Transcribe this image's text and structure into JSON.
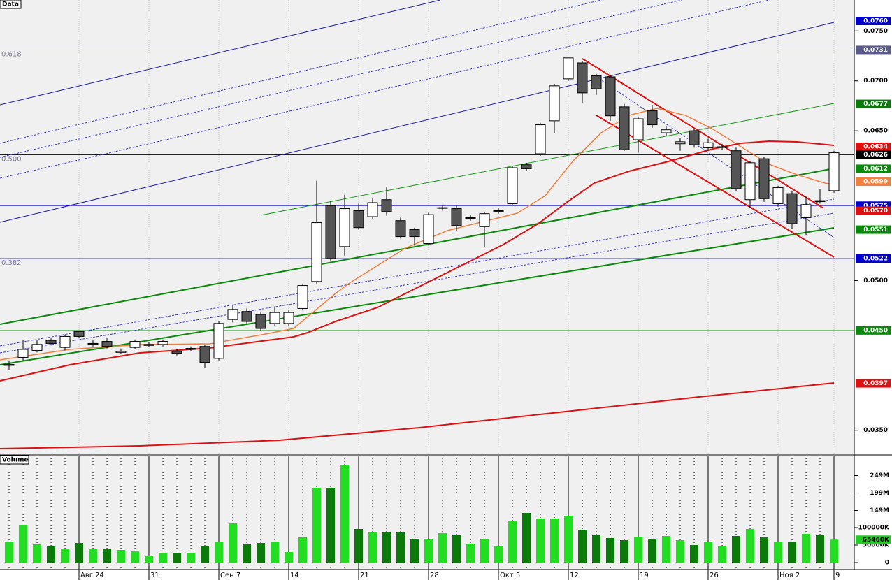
{
  "chart_data": {
    "type": "candlestick",
    "title": "Data",
    "volume_title": "Volume",
    "categories": [
      null,
      null,
      null,
      null,
      null,
      "Авг 24",
      null,
      null,
      null,
      null,
      "31",
      null,
      null,
      null,
      null,
      "Сен 7",
      null,
      null,
      null,
      null,
      "14",
      null,
      null,
      null,
      null,
      "21",
      null,
      null,
      null,
      null,
      "28",
      null,
      null,
      null,
      null,
      "Окт 5",
      null,
      null,
      null,
      null,
      "12",
      null,
      null,
      null,
      null,
      "19",
      null,
      null,
      null,
      null,
      "26",
      null,
      null,
      null,
      null,
      "Ноя 2",
      null,
      null,
      null,
      "9"
    ],
    "open": [
      0.0415,
      0.0423,
      0.043,
      0.044,
      0.0433,
      0.0449,
      0.0437,
      0.0439,
      0.0428,
      0.0433,
      0.0435,
      0.0436,
      0.0429,
      0.0431,
      0.0434,
      0.0422,
      0.0461,
      0.0469,
      0.0466,
      0.0457,
      0.0457,
      0.0472,
      0.0499,
      0.0575,
      0.0534,
      0.057,
      0.0564,
      0.0581,
      0.056,
      0.0551,
      0.0537,
      0.0573,
      0.0572,
      0.0563,
      0.0554,
      0.057,
      0.0577,
      0.0616,
      0.0627,
      0.066,
      0.0702,
      0.0718,
      0.0705,
      0.0704,
      0.0674,
      0.0641,
      0.067,
      0.0648,
      0.0637,
      0.065,
      0.0633,
      0.0634,
      0.063,
      0.0581,
      0.0622,
      0.0577,
      0.0587,
      0.0563,
      0.058,
      0.059
    ],
    "high": [
      0.042,
      0.044,
      0.044,
      0.0442,
      0.0446,
      0.045,
      0.0441,
      0.0442,
      0.0432,
      0.0441,
      0.0438,
      0.0441,
      0.0431,
      0.0434,
      0.0436,
      0.0459,
      0.0476,
      0.0472,
      0.0468,
      0.0474,
      0.047,
      0.0497,
      0.06,
      0.058,
      0.0586,
      0.0577,
      0.0582,
      0.0594,
      0.0563,
      0.0553,
      0.0568,
      0.0576,
      0.0575,
      0.0566,
      0.0569,
      0.0573,
      0.0615,
      0.0618,
      0.0658,
      0.0697,
      0.0723,
      0.072,
      0.0707,
      0.0706,
      0.0677,
      0.0664,
      0.0676,
      0.0655,
      0.0643,
      0.0652,
      0.0642,
      0.0637,
      0.0633,
      0.062,
      0.0624,
      0.0595,
      0.059,
      0.0584,
      0.0592,
      0.063
    ],
    "low": [
      0.041,
      0.042,
      0.0428,
      0.0435,
      0.043,
      0.0442,
      0.0434,
      0.0432,
      0.0426,
      0.0431,
      0.0433,
      0.0434,
      0.0425,
      0.0429,
      0.0412,
      0.042,
      0.0458,
      0.0457,
      0.045,
      0.0455,
      0.0455,
      0.047,
      0.0497,
      0.0519,
      0.0525,
      0.0551,
      0.0562,
      0.0565,
      0.0542,
      0.0535,
      0.0535,
      0.057,
      0.055,
      0.056,
      0.0534,
      0.0567,
      0.0575,
      0.061,
      0.0625,
      0.0648,
      0.07,
      0.0678,
      0.0686,
      0.066,
      0.063,
      0.0628,
      0.0653,
      0.0645,
      0.063,
      0.0633,
      0.063,
      0.0631,
      0.059,
      0.0573,
      0.0579,
      0.0574,
      0.0552,
      0.0545,
      0.0577,
      0.0588
    ],
    "close": [
      0.0416,
      0.0431,
      0.0436,
      0.0437,
      0.0444,
      0.0444,
      0.0437,
      0.0434,
      0.0429,
      0.0439,
      0.0436,
      0.0439,
      0.0427,
      0.0432,
      0.0418,
      0.0457,
      0.0471,
      0.0459,
      0.0452,
      0.0468,
      0.0468,
      0.0495,
      0.0558,
      0.0522,
      0.0572,
      0.0553,
      0.0578,
      0.0569,
      0.0544,
      0.0544,
      0.0566,
      0.0573,
      0.0555,
      0.0563,
      0.0567,
      0.057,
      0.0613,
      0.0612,
      0.0656,
      0.0695,
      0.0723,
      0.0688,
      0.0692,
      0.0665,
      0.0631,
      0.0662,
      0.0656,
      0.0651,
      0.0639,
      0.0636,
      0.0638,
      0.0634,
      0.0592,
      0.0618,
      0.0582,
      0.0593,
      0.0557,
      0.0576,
      0.0579,
      0.0628
    ],
    "volume": [
      60,
      106,
      52,
      48,
      40,
      56,
      38,
      38,
      36,
      32,
      18,
      28,
      28,
      28,
      46,
      58,
      112,
      52,
      56,
      58,
      30,
      72,
      214,
      214,
      280,
      96,
      86,
      86,
      86,
      68,
      68,
      84,
      78,
      54,
      66,
      48,
      120,
      142,
      126,
      126,
      134,
      94,
      78,
      70,
      64,
      74,
      68,
      76,
      64,
      50,
      60,
      46,
      76,
      96,
      72,
      58,
      58,
      82,
      78,
      65.46
    ],
    "ylim": [
      0.0326,
      0.0781
    ],
    "yticks": [
      {
        "value": 0.075,
        "label": "0.0750"
      },
      {
        "value": 0.07,
        "label": "0.0700"
      },
      {
        "value": 0.065,
        "label": "0.0650"
      },
      {
        "value": 0.05,
        "label": "0.0500"
      },
      {
        "value": 0.035,
        "label": "0.0350"
      }
    ],
    "volume_ylim": [
      0,
      306
    ],
    "volume_ticks": [
      {
        "value": 249,
        "label": "249M"
      },
      {
        "value": 199,
        "label": "199M"
      },
      {
        "value": 149,
        "label": "149M"
      },
      {
        "value": 100,
        "label": "100000K"
      },
      {
        "value": 50,
        "label": "50000K"
      },
      0
    ],
    "volume_marker": {
      "value": 65.46,
      "label": "65460K",
      "color": "#22cc22"
    },
    "price_markers": [
      {
        "value": 0.076,
        "label": "0.0760",
        "color": "#0000cc"
      },
      {
        "value": 0.0731,
        "label": "0.0731",
        "color": "#5a5a8a",
        "hline": true
      },
      {
        "value": 0.0677,
        "label": "0.0677",
        "color": "#0a7a0a"
      },
      {
        "value": 0.0634,
        "label": "0.0634",
        "color": "#dd1111"
      },
      {
        "value": 0.0626,
        "label": "0.0626",
        "color": "#000000",
        "hline": true
      },
      {
        "value": 0.0612,
        "label": "0.0612",
        "color": "#0a8a0a"
      },
      {
        "value": 0.0599,
        "label": "0.0599",
        "color": "#f08040"
      },
      {
        "value": 0.0575,
        "label": "0.0575",
        "color": "#0000cc",
        "hline": true
      },
      {
        "value": 0.057,
        "label": "0.0570",
        "color": "#dd1111"
      },
      {
        "value": 0.0551,
        "label": "0.0551",
        "color": "#0a8a0a"
      },
      {
        "value": 0.0522,
        "label": "0.0522",
        "color": "#0000cc",
        "hline": true
      },
      {
        "value": 0.045,
        "label": "0.0450",
        "color": "#0a8a0a",
        "hline": true
      },
      {
        "value": 0.0397,
        "label": "0.0397",
        "color": "#dd1111"
      }
    ],
    "fib_levels": [
      {
        "label": "0.618",
        "value": 0.0731
      },
      {
        "label": "0.500",
        "value": 0.0626
      },
      {
        "label": "0.382",
        "value": 0.0522
      }
    ],
    "up_color": "#ffffff",
    "down_color": "#555555",
    "volume_up_color": "#22dd22",
    "volume_down_color": "#0b7a0b"
  }
}
